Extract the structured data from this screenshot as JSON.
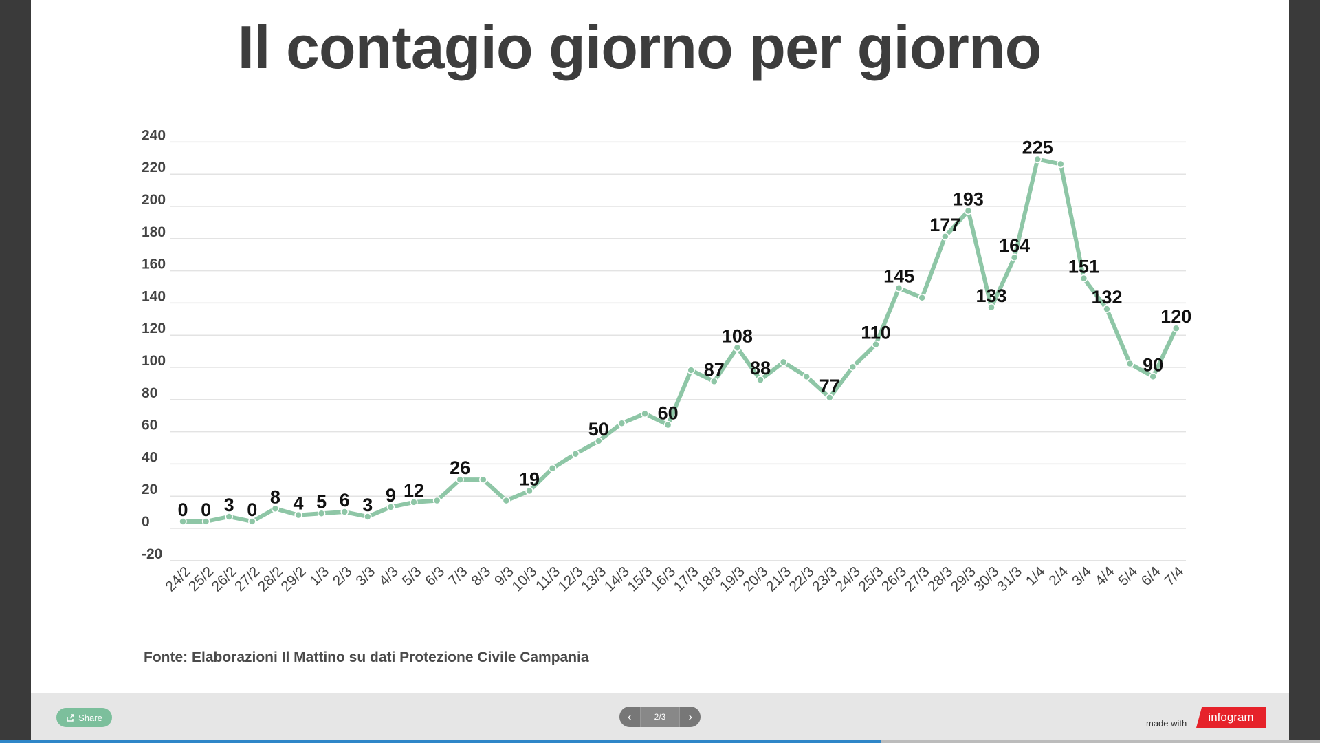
{
  "chart_data": {
    "type": "line",
    "title": "Il contagio giorno per giorno",
    "ylim": [
      -20,
      240
    ],
    "yticks": [
      -20,
      0,
      20,
      40,
      60,
      80,
      100,
      120,
      140,
      160,
      180,
      200,
      220,
      240
    ],
    "grid": true,
    "color": "#8ec6a6",
    "x": [
      "24/2",
      "25/2",
      "26/2",
      "27/2",
      "28/2",
      "29/2",
      "1/3",
      "2/3",
      "3/3",
      "4/3",
      "5/3",
      "6/3",
      "7/3",
      "8/3",
      "9/3",
      "10/3",
      "11/3",
      "12/3",
      "13/3",
      "14/3",
      "15/3",
      "16/3",
      "17/3",
      "18/3",
      "19/3",
      "20/3",
      "21/3",
      "22/3",
      "23/3",
      "24/3",
      "25/3",
      "26/3",
      "27/3",
      "28/3",
      "29/3",
      "30/3",
      "31/3",
      "1/4",
      "2/4",
      "3/4",
      "4/4",
      "5/4",
      "6/4",
      "7/4"
    ],
    "values": [
      0,
      0,
      3,
      0,
      8,
      4,
      5,
      6,
      3,
      9,
      12,
      13,
      26,
      26,
      13,
      19,
      33,
      42,
      50,
      61,
      67,
      60,
      94,
      87,
      108,
      88,
      99,
      90,
      77,
      96,
      110,
      145,
      139,
      177,
      193,
      133,
      164,
      225,
      222,
      151,
      132,
      98,
      90,
      120
    ],
    "labels": [
      "0",
      "0",
      "3",
      "0",
      "8",
      "4",
      "5",
      "6",
      "3",
      "9",
      "12",
      "",
      "26",
      "",
      "",
      "19",
      "",
      "",
      "50",
      "",
      "",
      "60",
      "",
      "87",
      "108",
      "88",
      "",
      "",
      "77",
      "",
      "110",
      "145",
      "",
      "177",
      "193",
      "133",
      "164",
      "225",
      "",
      "151",
      "132",
      "",
      "90",
      "120"
    ]
  },
  "source": "Fonte: Elaborazioni Il Mattino su dati Protezione Civile Campania",
  "footer": {
    "share_label": "Share",
    "share_icon": "share-icon",
    "page_indicator": "2/3",
    "prev_icon": "chevron-left-icon",
    "next_icon": "chevron-right-icon",
    "made_with": "made with",
    "brand": "infogram",
    "progress": 0.667,
    "progress_color": "#2e86c8"
  }
}
